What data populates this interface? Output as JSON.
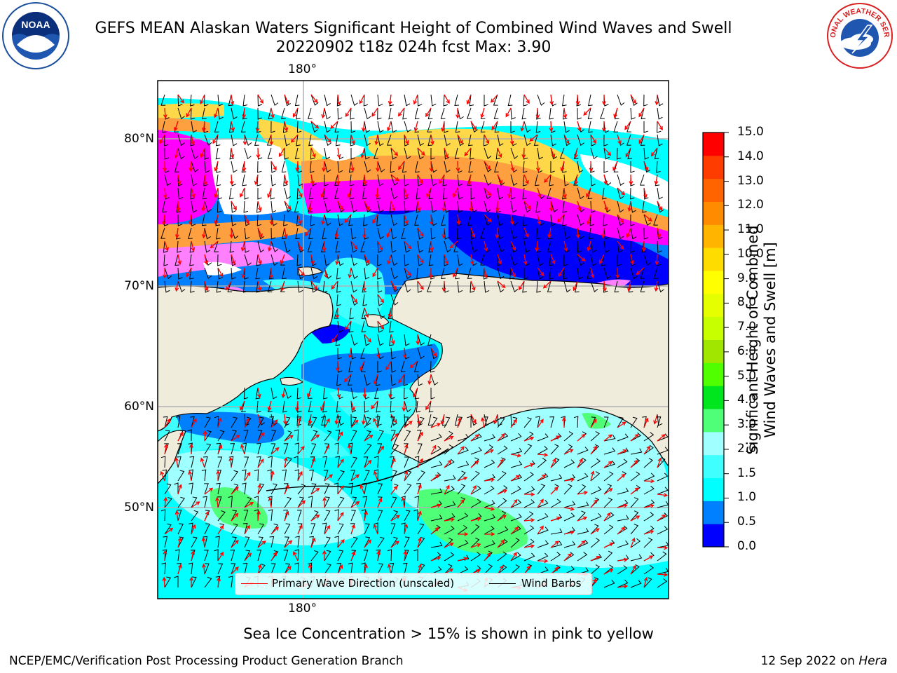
{
  "header": {
    "title": "GEFS MEAN Alaskan Waters Significant Height of Combined Wind Waves and Swell",
    "subtitle": "20220902 t18z 024h fcst   Max: 3.90"
  },
  "logos": {
    "left": "NOAA",
    "right": "NATIONAL WEATHER SERVICE"
  },
  "map": {
    "lon_label_top": "180°",
    "lon_label_bottom": "180°",
    "lat_labels": [
      "80°N",
      "70°N",
      "60°N",
      "50°N"
    ],
    "colors": {
      "land": "#efecdc",
      "ice_white": "#ffffff",
      "wave_dark_blue": "#0000ff",
      "wave_blue": "#0080ff",
      "wave_cyan": "#00ffff",
      "wave_light_cyan": "#40ffff",
      "wave_pale_cyan": "#a0ffff",
      "wave_green": "#50ff78",
      "ice_magenta": "#ff00ff",
      "ice_pink": "#ff80ff",
      "ice_orange": "#ffa040",
      "ice_yellow": "#ffd84a",
      "arrow_red": "#ff0000",
      "barb_black": "#000000"
    },
    "legend": {
      "wave_label": "Primary Wave Direction (unscaled)",
      "barb_label": "Wind Barbs"
    }
  },
  "colorbar": {
    "label_line1": "Significant Height of Combined",
    "label_line2": "Wind Waves and Swell [m]",
    "ticks": [
      "15.0",
      "14.0",
      "13.0",
      "12.0",
      "11.0",
      "10.0",
      "9.0",
      "8.0",
      "7.0",
      "6.0",
      "5.0",
      "4.0",
      "3.0",
      "2.0",
      "1.5",
      "1.0",
      "0.5",
      "0.0"
    ],
    "colors": [
      "#0000ff",
      "#0080ff",
      "#00ffff",
      "#40ffff",
      "#a0ffff",
      "#50ff78",
      "#00e61e",
      "#50ff00",
      "#a0e600",
      "#c8ff00",
      "#e6ff00",
      "#ffff00",
      "#ffdc00",
      "#ffb400",
      "#ff8c00",
      "#ff6400",
      "#ff3c00",
      "#ff0000"
    ]
  },
  "notes": {
    "ice": "Sea Ice Concentration > 15% is shown in pink to yellow",
    "producer": "NCEP/EMC/Verification Post Processing Product Generation Branch",
    "date": "12 Sep 2022 on ",
    "machine": "Hera"
  }
}
